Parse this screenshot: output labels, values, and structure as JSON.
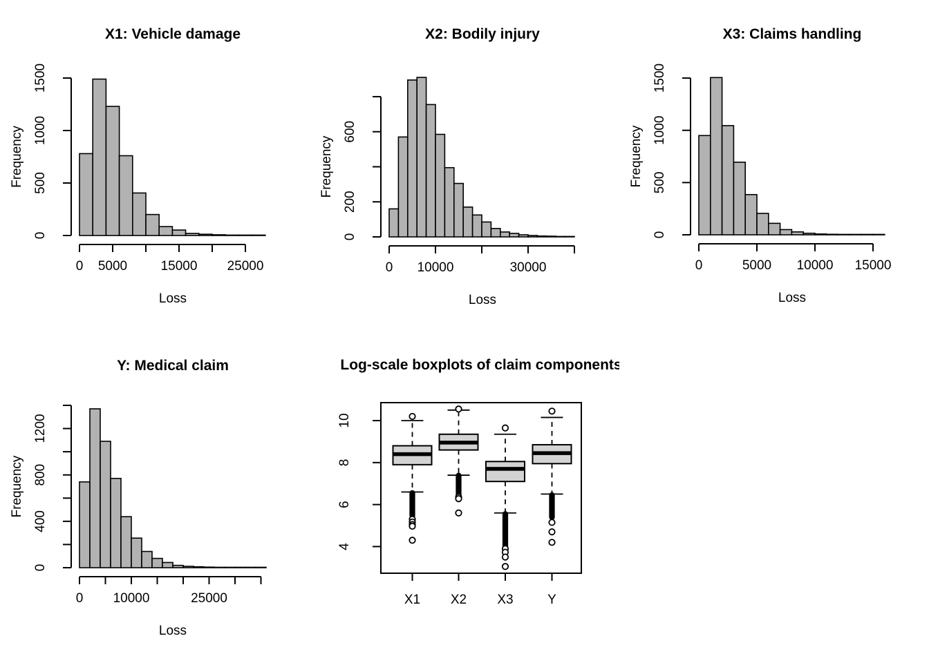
{
  "figure": {
    "background": "#ffffff",
    "stroke_color": "#000000",
    "hist_bar_fill": "#b2b2b2",
    "box_fill": "#d3d3d3"
  },
  "chart_data": [
    {
      "id": "hist-x1",
      "type": "bar",
      "panel": 0,
      "title": "X1: Vehicle damage",
      "xlabel": "Loss",
      "ylabel": "Frequency",
      "bin_start": 0,
      "bin_width": 2000,
      "counts": [
        780,
        1490,
        1230,
        760,
        405,
        200,
        85,
        52,
        20,
        12,
        7,
        4,
        2,
        1
      ],
      "x_ticks": [
        {
          "v": 0,
          "label": "0"
        },
        {
          "v": 5000,
          "label": "5000"
        },
        {
          "v": 10000,
          "label": ""
        },
        {
          "v": 15000,
          "label": "15000"
        },
        {
          "v": 20000,
          "label": ""
        },
        {
          "v": 25000,
          "label": "25000"
        }
      ],
      "y_ticks": [
        {
          "v": 0,
          "label": "0"
        },
        {
          "v": 500,
          "label": "500"
        },
        {
          "v": 1000,
          "label": "1000"
        },
        {
          "v": 1500,
          "label": "1500"
        }
      ]
    },
    {
      "id": "hist-x2",
      "type": "bar",
      "panel": 1,
      "title": "X2: Bodily injury",
      "xlabel": "Loss",
      "ylabel": "Frequency",
      "bin_start": 0,
      "bin_width": 2000,
      "counts": [
        160,
        570,
        895,
        910,
        755,
        585,
        395,
        305,
        170,
        125,
        85,
        48,
        28,
        20,
        12,
        8,
        5,
        4,
        2,
        2
      ],
      "x_ticks": [
        {
          "v": 0,
          "label": "0"
        },
        {
          "v": 10000,
          "label": "10000"
        },
        {
          "v": 20000,
          "label": ""
        },
        {
          "v": 30000,
          "label": "30000"
        },
        {
          "v": 40000,
          "label": ""
        }
      ],
      "y_ticks": [
        {
          "v": 0,
          "label": "0"
        },
        {
          "v": 200,
          "label": "200"
        },
        {
          "v": 400,
          "label": ""
        },
        {
          "v": 600,
          "label": "600"
        },
        {
          "v": 800,
          "label": ""
        }
      ]
    },
    {
      "id": "hist-x3",
      "type": "bar",
      "panel": 2,
      "title": "X3: Claims handling",
      "xlabel": "Loss",
      "ylabel": "Frequency",
      "bin_start": 0,
      "bin_width": 1000,
      "counts": [
        950,
        1505,
        1045,
        695,
        385,
        205,
        110,
        50,
        28,
        15,
        8,
        5,
        3,
        2,
        1,
        1
      ],
      "x_ticks": [
        {
          "v": 0,
          "label": "0"
        },
        {
          "v": 5000,
          "label": "5000"
        },
        {
          "v": 10000,
          "label": "10000"
        },
        {
          "v": 15000,
          "label": "15000"
        }
      ],
      "y_ticks": [
        {
          "v": 0,
          "label": "0"
        },
        {
          "v": 500,
          "label": "500"
        },
        {
          "v": 1000,
          "label": "1000"
        },
        {
          "v": 1500,
          "label": "1500"
        }
      ]
    },
    {
      "id": "hist-y",
      "type": "bar",
      "panel": 3,
      "title": "Y: Medical claim",
      "xlabel": "Loss",
      "ylabel": "Frequency",
      "bin_start": 0,
      "bin_width": 2000,
      "counts": [
        740,
        1370,
        1090,
        770,
        440,
        255,
        140,
        80,
        45,
        20,
        12,
        8,
        5,
        3,
        2,
        1,
        1,
        1
      ],
      "x_ticks": [
        {
          "v": 0,
          "label": "0"
        },
        {
          "v": 5000,
          "label": ""
        },
        {
          "v": 10000,
          "label": "10000"
        },
        {
          "v": 15000,
          "label": ""
        },
        {
          "v": 20000,
          "label": ""
        },
        {
          "v": 25000,
          "label": "25000"
        },
        {
          "v": 30000,
          "label": ""
        },
        {
          "v": 35000,
          "label": ""
        }
      ],
      "y_ticks": [
        {
          "v": 0,
          "label": "0"
        },
        {
          "v": 200,
          "label": ""
        },
        {
          "v": 400,
          "label": "400"
        },
        {
          "v": 600,
          "label": ""
        },
        {
          "v": 800,
          "label": "800"
        },
        {
          "v": 1000,
          "label": ""
        },
        {
          "v": 1200,
          "label": "1200"
        },
        {
          "v": 1400,
          "label": ""
        }
      ]
    },
    {
      "id": "boxplot",
      "type": "boxplot",
      "panel": 4,
      "title": "Log-scale boxplots of claim components",
      "y_ticks": [
        {
          "v": 4,
          "label": "4"
        },
        {
          "v": 6,
          "label": "6"
        },
        {
          "v": 8,
          "label": "8"
        },
        {
          "v": 10,
          "label": "10"
        }
      ],
      "ylim": [
        3.0,
        10.8
      ],
      "groups": [
        {
          "label": "X1",
          "q1": 7.9,
          "median": 8.4,
          "q3": 8.8,
          "whisker_low": 6.6,
          "whisker_high": 10.0,
          "outliers_high": [
            10.2
          ],
          "outliers_low_dense": {
            "from": 6.55,
            "to": 5.45,
            "step": 0.03
          },
          "outliers_low": [
            5.3,
            5.17,
            5.05,
            4.97,
            4.3
          ]
        },
        {
          "label": "X2",
          "q1": 8.6,
          "median": 8.95,
          "q3": 9.35,
          "whisker_low": 7.4,
          "whisker_high": 10.5,
          "outliers_high": [
            10.55
          ],
          "outliers_low_dense": {
            "from": 7.38,
            "to": 6.45,
            "step": 0.03
          },
          "outliers_low": [
            6.36,
            6.28,
            5.6
          ]
        },
        {
          "label": "X3",
          "q1": 7.1,
          "median": 7.7,
          "q3": 8.05,
          "whisker_low": 5.6,
          "whisker_high": 9.35,
          "outliers_high": [
            9.65
          ],
          "outliers_low_dense": {
            "from": 5.55,
            "to": 4.0,
            "step": 0.03
          },
          "outliers_low": [
            3.9,
            3.73,
            3.5,
            3.05
          ]
        },
        {
          "label": "Y",
          "q1": 7.95,
          "median": 8.45,
          "q3": 8.85,
          "whisker_low": 6.5,
          "whisker_high": 10.15,
          "outliers_high": [
            10.45
          ],
          "outliers_low_dense": {
            "from": 6.45,
            "to": 5.4,
            "step": 0.03
          },
          "outliers_low": [
            5.15,
            4.7,
            4.2
          ]
        }
      ]
    }
  ]
}
